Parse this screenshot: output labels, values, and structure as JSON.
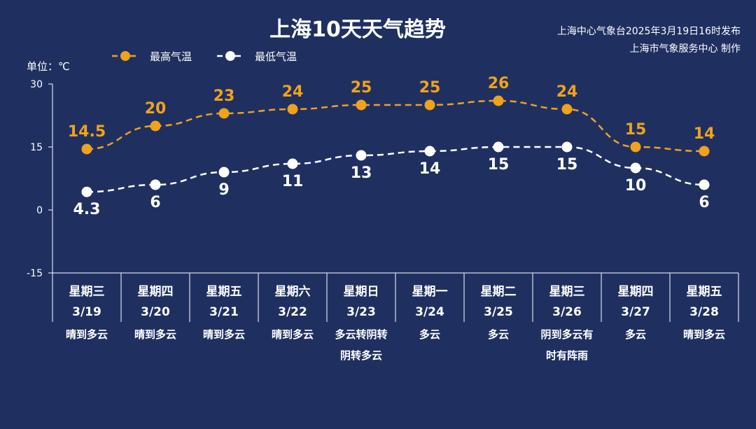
{
  "header": {
    "issuer_line1": "上海中心气象台2025年3月19日16时发布",
    "issuer_line2": "上海市气象服务中心 制作"
  },
  "colors": {
    "background": "#1f3060",
    "high": "#f0a21d",
    "low": "#ffffff",
    "axis": "#ffffff"
  },
  "chart_data": {
    "type": "line",
    "title": "上海10天天气趋势",
    "unit_label": "单位：℃",
    "ylim": [
      -15,
      30
    ],
    "yticks": [
      "30",
      "15",
      "0",
      "-15"
    ],
    "legend_position": "top-left",
    "grid": false,
    "categories": [
      "3/19",
      "3/20",
      "3/21",
      "3/22",
      "3/23",
      "3/24",
      "3/25",
      "3/26",
      "3/27",
      "3/28"
    ],
    "weekdays": [
      "星期三",
      "星期四",
      "星期五",
      "星期六",
      "星期日",
      "星期一",
      "星期二",
      "星期三",
      "星期四",
      "星期五"
    ],
    "weather": [
      [
        "晴到多云"
      ],
      [
        "晴到多云"
      ],
      [
        "晴到多云"
      ],
      [
        "晴到多云"
      ],
      [
        "多云转阴转",
        "阴转多云"
      ],
      [
        "多云"
      ],
      [
        "多云"
      ],
      [
        "阴到多云有",
        "时有阵雨"
      ],
      [
        "多云"
      ],
      [
        "晴到多云"
      ]
    ],
    "series": [
      {
        "name": "最高气温",
        "values": [
          14.5,
          20,
          23,
          24,
          25,
          25,
          26,
          24,
          15,
          14
        ],
        "labels": [
          "14.5",
          "20",
          "23",
          "24",
          "25",
          "25",
          "26",
          "24",
          "15",
          "14"
        ]
      },
      {
        "name": "最低气温",
        "values": [
          4.3,
          6,
          9,
          11,
          13,
          14,
          15,
          15,
          10,
          6
        ],
        "labels": [
          "4.3",
          "6",
          "9",
          "11",
          "13",
          "14",
          "15",
          "15",
          "10",
          "6"
        ]
      }
    ]
  }
}
